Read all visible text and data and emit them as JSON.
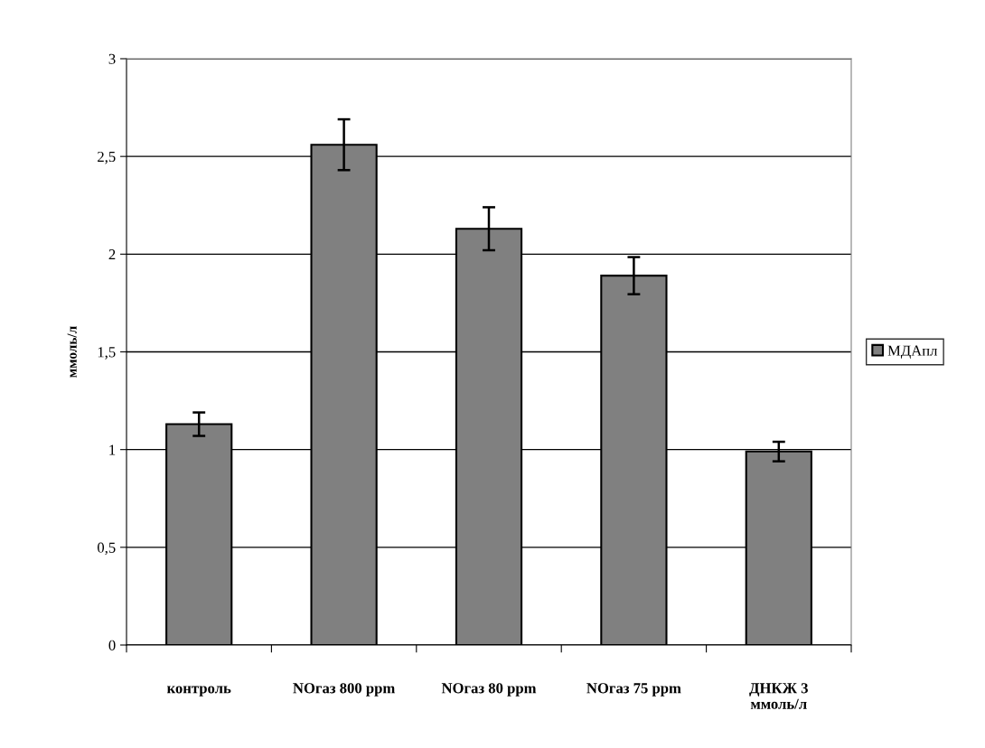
{
  "chart_data": {
    "type": "bar",
    "ylabel": "ммоль/л",
    "categories": [
      "контроль",
      "NOгаз 800 ppm",
      "NOгаз 80 ppm",
      "NOгаз 75 ppm",
      "ДНКЖ 3\nммоль/л"
    ],
    "series": [
      {
        "name": "МДАпл",
        "color": "#808080",
        "values": [
          1.13,
          2.56,
          2.13,
          1.89,
          0.99
        ],
        "errors": [
          0.06,
          0.13,
          0.11,
          0.095,
          0.05
        ]
      }
    ],
    "ylim": [
      0,
      3
    ],
    "yticks": [
      0,
      {
        "value": 0.5,
        "label": "0,5"
      },
      1,
      {
        "value": 1.5,
        "label": "1,5"
      },
      2,
      {
        "value": 2.5,
        "label": "2,5"
      },
      3
    ],
    "grid": "y",
    "legend": "right"
  }
}
